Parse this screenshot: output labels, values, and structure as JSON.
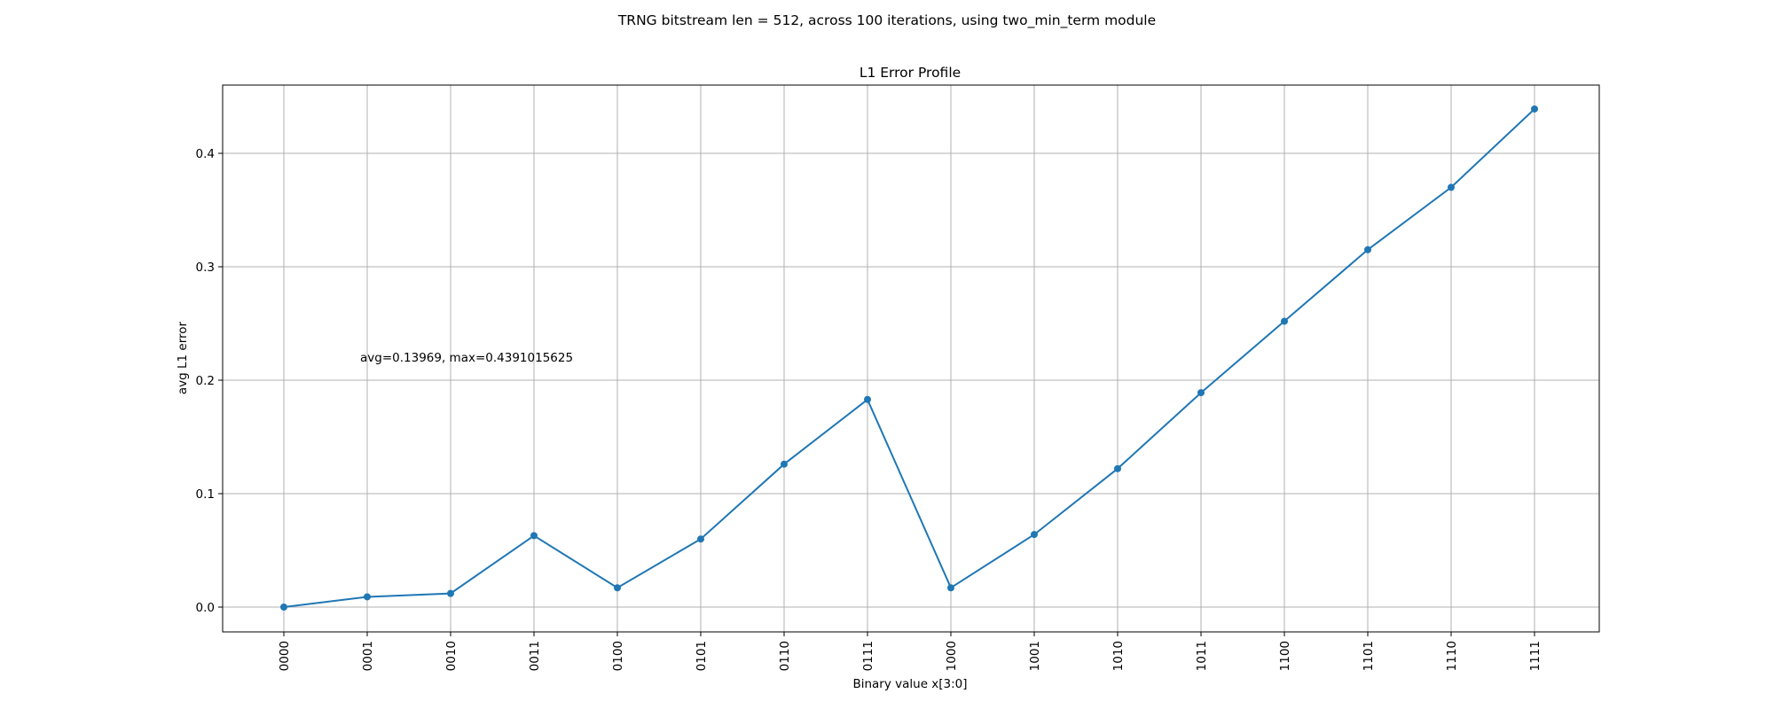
{
  "figure": {
    "suptitle": "TRNG bitstream len = 512, across 100 iterations, using two_min_term module"
  },
  "chart_data": {
    "type": "line",
    "title": "L1 Error Profile",
    "xlabel": "Binary value x[3:0]",
    "ylabel": "avg L1 error",
    "categories": [
      "0000",
      "0001",
      "0010",
      "0011",
      "0100",
      "0101",
      "0110",
      "0111",
      "1000",
      "1001",
      "1010",
      "1011",
      "1100",
      "1101",
      "1110",
      "1111"
    ],
    "series": [
      {
        "values": [
          0.0,
          0.009,
          0.012,
          0.063,
          0.017,
          0.06,
          0.126,
          0.183,
          0.017,
          0.064,
          0.122,
          0.189,
          0.252,
          0.315,
          0.37,
          0.4391015625
        ],
        "color": "#1f77b4",
        "marker": "circle"
      }
    ],
    "yticks": [
      0.0,
      0.1,
      0.2,
      0.3,
      0.4
    ],
    "ytick_labels": [
      "0.0",
      "0.1",
      "0.2",
      "0.3",
      "0.4"
    ],
    "ylim": [
      -0.022,
      0.461
    ],
    "grid": true,
    "annotation": "avg=0.13969, max=0.4391015625"
  }
}
